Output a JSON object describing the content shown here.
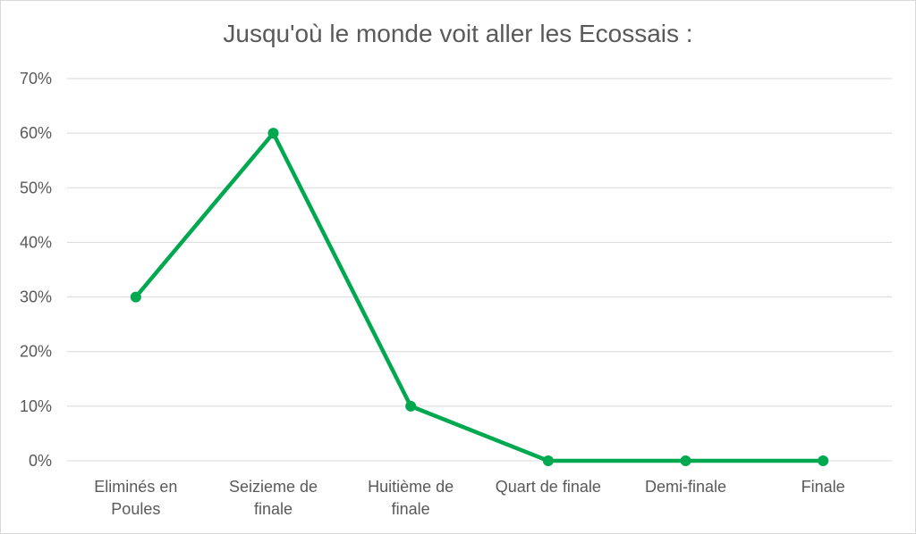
{
  "chart_data": {
    "type": "line",
    "title": "Jusqu'où le monde voit aller les Ecossais :",
    "categories": [
      [
        "Eliminés en",
        "Poules"
      ],
      [
        "Seizieme de",
        "finale"
      ],
      [
        "Huitième de",
        "finale"
      ],
      [
        "Quart de finale"
      ],
      [
        "Demi-finale"
      ],
      [
        "Finale"
      ]
    ],
    "series": [
      {
        "values": [
          30,
          60,
          10,
          0,
          0,
          0
        ]
      }
    ],
    "y_ticks": [
      "0%",
      "10%",
      "20%",
      "30%",
      "40%",
      "50%",
      "60%",
      "70%"
    ],
    "ylim": [
      0,
      70
    ],
    "grid": true,
    "line_color": "#00a84f",
    "grid_color": "#d9d9d9"
  }
}
